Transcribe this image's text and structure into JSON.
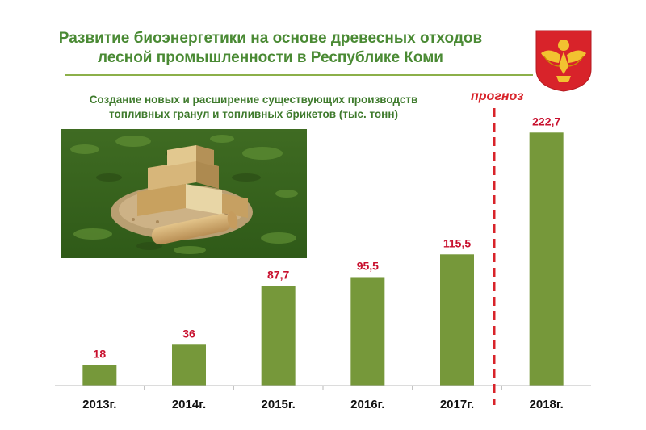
{
  "header": {
    "title_line1": "Развитие биоэнергетики на основе древесных отходов",
    "title_line2": "лесной промышленности в Республике Коми",
    "emblem_icon": "komi-coat-of-arms-icon"
  },
  "colors": {
    "title": "#4a8a34",
    "bar": "#76983a",
    "value_label": "#c8102e",
    "forecast_line": "#d8232a"
  },
  "chart_data": {
    "type": "bar",
    "title": "Создание новых и расширение существующих производств топливных гранул и топливных брикетов (тыс. тонн)",
    "title_line1": "Создание новых и расширение существующих производств",
    "title_line2": "топливных гранул и топливных брикетов (тыс. тонн)",
    "categories": [
      "2013г.",
      "2014г.",
      "2015г.",
      "2016г.",
      "2017г.",
      "2018г."
    ],
    "values": [
      18,
      36,
      87.7,
      95.5,
      115.5,
      222.7
    ],
    "value_labels": [
      "18",
      "36",
      "87,7",
      "95,5",
      "115,5",
      "222,7"
    ],
    "forecast_label": "прогноз",
    "forecast_from_index": 5,
    "ylim": [
      0,
      230
    ],
    "grid": false,
    "xlabel": "",
    "ylabel": ""
  }
}
